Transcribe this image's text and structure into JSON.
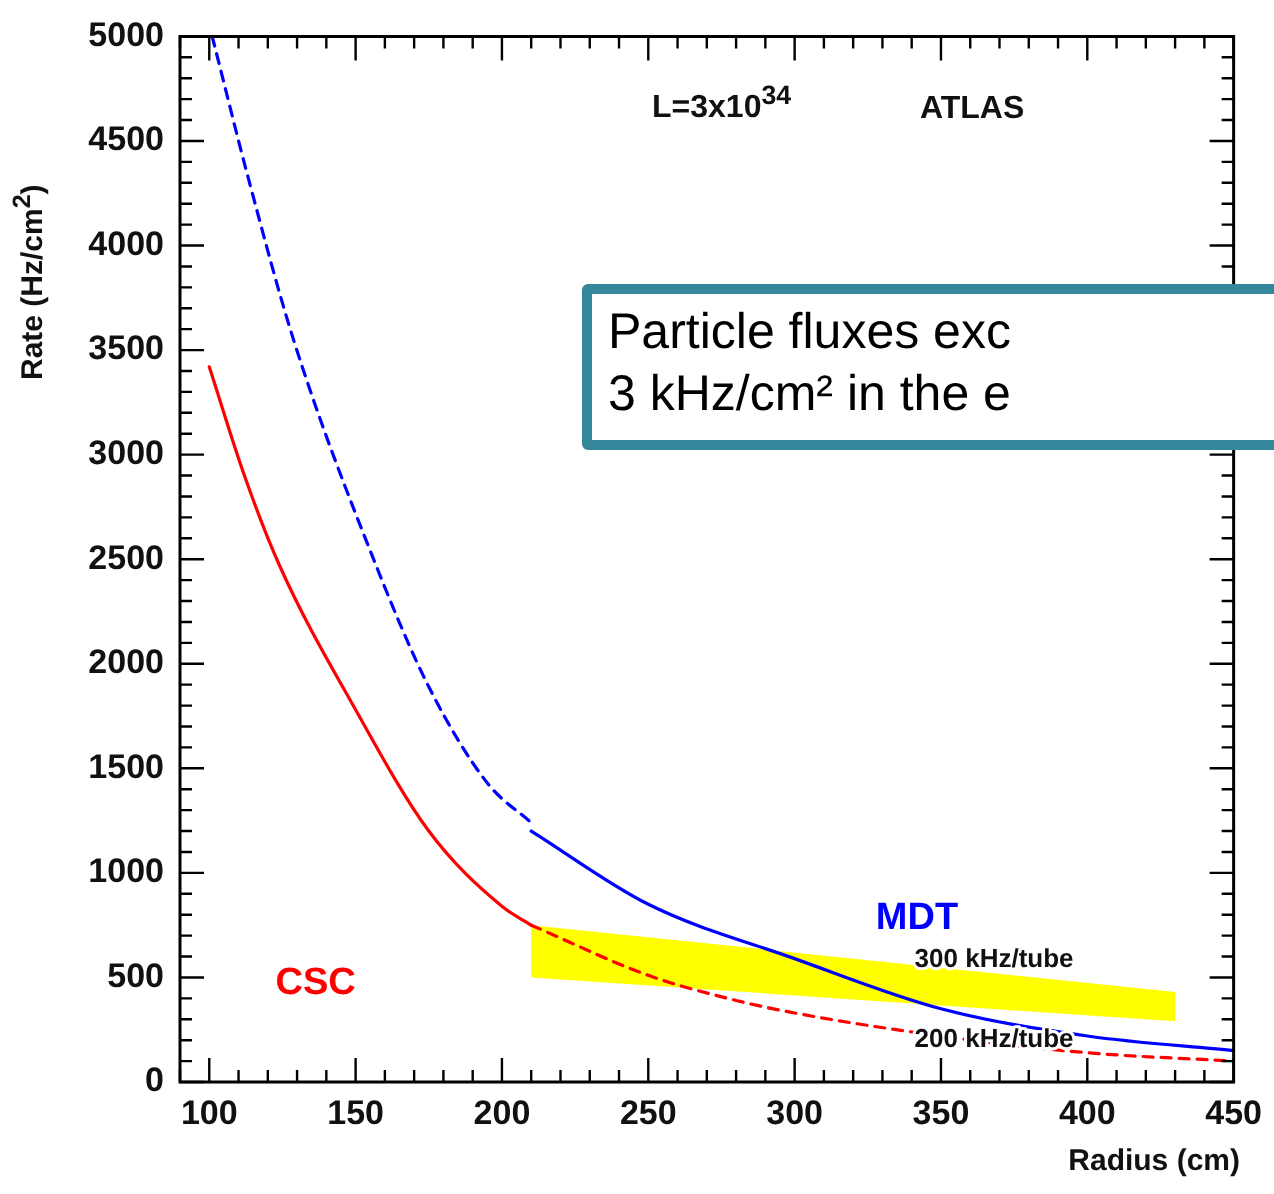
{
  "chart_data": {
    "type": "line",
    "xlabel": "Radius (cm)",
    "ylabel": "Rate (Hz/cm$^{2}$)",
    "xlim": [
      90,
      450
    ],
    "xticks": [
      100,
      150,
      200,
      250,
      300,
      350,
      400,
      450
    ],
    "ylim": [
      0,
      5000
    ],
    "yticks": [
      0,
      500,
      1000,
      1500,
      2000,
      2500,
      3000,
      3500,
      4000,
      4500,
      5000
    ],
    "grid": false,
    "legend": false,
    "marker": "none",
    "series": [
      {
        "color": "#ffff00",
        "x": [
          210,
          430
        ],
        "values": [
          null,
          null
        ],
        "lower": [
          500,
          290
        ],
        "upper": [
          750,
          430
        ]
      },
      {
        "name": "CSC",
        "color": "#ff0000",
        "line_style": "solid",
        "x": [
          100,
          112,
          124,
          150,
          175,
          200,
          210
        ],
        "values": [
          3420,
          2900,
          2470,
          1780,
          1200,
          840,
          750
        ]
      },
      {
        "color": "#ff0000",
        "line_style": "dashed",
        "x": [
          210,
          250,
          280,
          300,
          350,
          400,
          450
        ],
        "values": [
          750,
          510,
          390,
          330,
          220,
          140,
          100
        ]
      },
      {
        "color": "#0000ff",
        "line_style": "dashed",
        "x": [
          101,
          113,
          129,
          157,
          175,
          195,
          210
        ],
        "values": [
          5000,
          4340,
          3540,
          2470,
          1890,
          1430,
          1240
        ]
      },
      {
        "name": "MDT",
        "color": "#0000ff",
        "line_style": "solid",
        "x": [
          210,
          250,
          300,
          350,
          400,
          450
        ],
        "values": [
          1200,
          850,
          590,
          350,
          220,
          150
        ]
      }
    ],
    "annotations": [
      "L=3x10$^{34}$",
      "ATLAS",
      "Particle fluxes exc\n3 kHz/cm² in the e",
      {
        "text": "300 kHz/tube",
        "x": 341,
        "y": 585
      },
      {
        "text": "200 kHz/tube",
        "x": 341,
        "y": 200
      }
    ]
  }
}
